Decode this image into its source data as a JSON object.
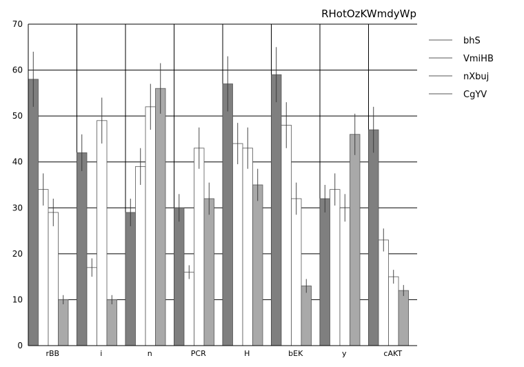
{
  "chart_data": {
    "type": "bar",
    "title": "RHotOzKWmdyWp",
    "xlabel": "",
    "ylabel": "",
    "ylim": [
      0,
      70
    ],
    "yticks": [
      0,
      10,
      20,
      30,
      40,
      50,
      60,
      70
    ],
    "grid": true,
    "legend_position": "top-right",
    "categories": [
      "rBB",
      "i",
      "n",
      "PCR",
      "H",
      "bEK",
      "y",
      "cAKT"
    ],
    "series": [
      {
        "name": "bhS",
        "color": "#7f7f7f",
        "values": [
          58,
          42,
          29,
          30,
          57,
          59,
          32,
          47
        ],
        "errors": [
          6,
          4,
          3,
          3,
          6,
          6,
          3,
          5
        ]
      },
      {
        "name": "VmiHB",
        "color": "#ffffff",
        "values": [
          34,
          17,
          39,
          16,
          44,
          48,
          34,
          23
        ],
        "errors": [
          3.5,
          2,
          4,
          1.5,
          4.5,
          5,
          3.5,
          2.5
        ]
      },
      {
        "name": "nXbuj",
        "color": "#ffffff",
        "values": [
          29,
          49,
          52,
          43,
          43,
          32,
          30,
          15
        ],
        "errors": [
          3,
          5,
          5,
          4.5,
          4.5,
          3.5,
          3,
          1.5
        ]
      },
      {
        "name": "CgYV",
        "color": "#a9a9a9",
        "values": [
          10,
          10,
          56,
          32,
          35,
          13,
          46,
          12
        ],
        "errors": [
          1,
          1,
          5.5,
          3.5,
          3.5,
          1.5,
          4.5,
          1.2
        ]
      }
    ]
  }
}
